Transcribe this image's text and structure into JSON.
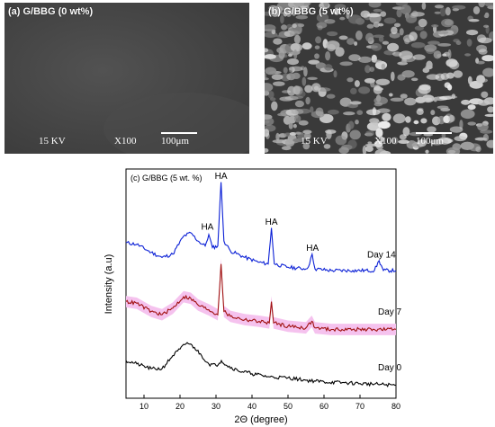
{
  "panels": [
    {
      "label": "(a) G/BBG (0 wt%)",
      "voltage": "15 KV",
      "magnification": "X100",
      "scale": "100μm"
    },
    {
      "label": "(b) G/BBG (5 wt%)",
      "voltage": "15 KV",
      "magnification": "X100",
      "scale": "100μm"
    }
  ],
  "colors": {
    "day14": "#0a1fd6",
    "day7": "#a01010",
    "day7_band": "#f5c2ee",
    "day0": "#000000"
  },
  "chart_data": {
    "type": "line",
    "title": "(c) G/BBG (5 wt. %)",
    "xlabel": "2Θ (degree)",
    "ylabel": "Intensity (a.u)",
    "xlim": [
      5,
      80
    ],
    "xticks": [
      10,
      20,
      30,
      40,
      50,
      60,
      70,
      80
    ],
    "series": [
      {
        "name": "Day 14",
        "points": [
          [
            5,
            8.7
          ],
          [
            8,
            8.6
          ],
          [
            12,
            8.1
          ],
          [
            15,
            7.8
          ],
          [
            18,
            8.0
          ],
          [
            21,
            9.1
          ],
          [
            23,
            9.3
          ],
          [
            25,
            8.8
          ],
          [
            27,
            8.5
          ],
          [
            28,
            9.2
          ],
          [
            29,
            8.4
          ],
          [
            30.5,
            8.5
          ],
          [
            31.4,
            12.4
          ],
          [
            32.2,
            8.8
          ],
          [
            34,
            8.2
          ],
          [
            38,
            7.8
          ],
          [
            42,
            7.5
          ],
          [
            44.5,
            7.4
          ],
          [
            45.4,
            9.6
          ],
          [
            46.2,
            7.4
          ],
          [
            50,
            7.2
          ],
          [
            55,
            7.1
          ],
          [
            56,
            7.4
          ],
          [
            56.7,
            8.0
          ],
          [
            57.5,
            7.1
          ],
          [
            62,
            7.0
          ],
          [
            68,
            7.0
          ],
          [
            74,
            7.0
          ],
          [
            75.3,
            7.6
          ],
          [
            76.5,
            7.0
          ],
          [
            80,
            7.0
          ]
        ]
      },
      {
        "name": "Day 7",
        "points": [
          [
            5,
            5.1
          ],
          [
            8,
            5.0
          ],
          [
            12,
            4.5
          ],
          [
            15,
            4.3
          ],
          [
            18,
            4.7
          ],
          [
            21,
            5.4
          ],
          [
            23,
            5.3
          ],
          [
            25,
            4.9
          ],
          [
            28,
            4.6
          ],
          [
            30.5,
            4.3
          ],
          [
            31.4,
            7.4
          ],
          [
            32.2,
            4.5
          ],
          [
            34,
            4.2
          ],
          [
            38,
            4.0
          ],
          [
            42,
            3.9
          ],
          [
            44.8,
            3.8
          ],
          [
            45.4,
            5.1
          ],
          [
            46,
            3.8
          ],
          [
            50,
            3.6
          ],
          [
            55,
            3.5
          ],
          [
            56.6,
            3.9
          ],
          [
            57.5,
            3.5
          ],
          [
            62,
            3.4
          ],
          [
            68,
            3.4
          ],
          [
            74,
            3.4
          ],
          [
            80,
            3.4
          ]
        ]
      },
      {
        "name": "Day 0",
        "points": [
          [
            5,
            1.5
          ],
          [
            8,
            1.3
          ],
          [
            12,
            1.0
          ],
          [
            15,
            1.0
          ],
          [
            18,
            1.8
          ],
          [
            20,
            2.2
          ],
          [
            22,
            2.6
          ],
          [
            24,
            2.3
          ],
          [
            26,
            1.8
          ],
          [
            28,
            1.3
          ],
          [
            30,
            1.2
          ],
          [
            31.5,
            1.5
          ],
          [
            33,
            1.2
          ],
          [
            36,
            0.9
          ],
          [
            40,
            0.7
          ],
          [
            45,
            0.5
          ],
          [
            50,
            0.45
          ],
          [
            55,
            0.3
          ],
          [
            60,
            0.2
          ],
          [
            65,
            0.15
          ],
          [
            70,
            0.1
          ],
          [
            75,
            0.05
          ],
          [
            80,
            0.0
          ]
        ]
      }
    ],
    "peak_labels": [
      {
        "text": "HA",
        "x": 27.6,
        "y": 9.5
      },
      {
        "text": "HA",
        "x": 31.4,
        "y": 12.6
      },
      {
        "text": "HA",
        "x": 45.4,
        "y": 9.8
      },
      {
        "text": "HA",
        "x": 56.8,
        "y": 8.2
      }
    ],
    "series_labels": [
      {
        "text": "Day 14",
        "x": 72,
        "y": 7.8
      },
      {
        "text": "Day 7",
        "x": 75,
        "y": 4.3
      },
      {
        "text": "Day 0",
        "x": 75,
        "y": 0.9
      }
    ],
    "ylim": [
      -0.8,
      13.2
    ]
  }
}
